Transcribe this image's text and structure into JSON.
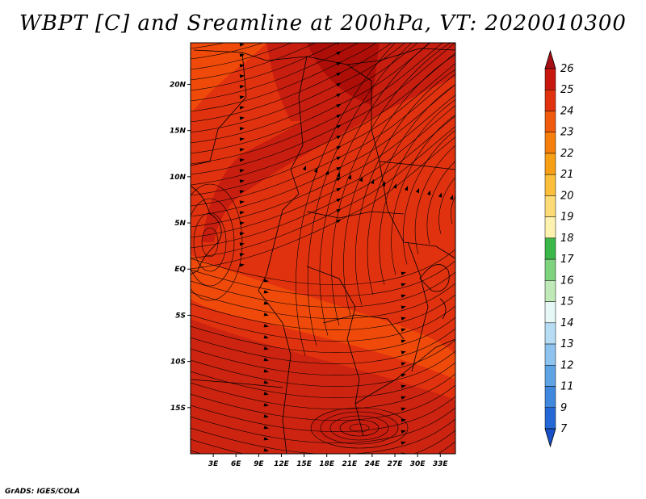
{
  "title": "WBPT [C] and Sreamline at 200hPa, VT: 2020010300",
  "credit": "GrADS: IGES/COLA",
  "map": {
    "lon_ticks": [
      "3E",
      "6E",
      "9E",
      "12E",
      "15E",
      "18E",
      "21E",
      "24E",
      "27E",
      "30E",
      "33E"
    ],
    "lat_ticks": [
      "20N",
      "15N",
      "10N",
      "5N",
      "EQ",
      "5S",
      "10S",
      "15S"
    ],
    "lon_values": [
      3,
      6,
      9,
      12,
      15,
      18,
      21,
      24,
      27,
      30,
      33
    ],
    "lat_values": [
      20,
      15,
      10,
      5,
      0,
      -5,
      -10,
      -15
    ],
    "lon_range": [
      0,
      35
    ],
    "lat_range": [
      -20,
      24.5
    ],
    "colors": {
      "band_25": "#c81e10",
      "band_24": "#e1320f",
      "band_23": "#f04a0a",
      "band_26": "#ad0f08"
    }
  },
  "colorbar": {
    "labels": [
      "26",
      "25",
      "24",
      "23",
      "22",
      "21",
      "20",
      "19",
      "18",
      "17",
      "16",
      "15",
      "14",
      "13",
      "12",
      "11",
      "9",
      "7"
    ],
    "colors": [
      "#a50f15",
      "#c8170f",
      "#e0320f",
      "#ef5a0d",
      "#f57e0d",
      "#f8a015",
      "#fbbf3c",
      "#fddc78",
      "#fef2b0",
      "#3cb84a",
      "#7fd27e",
      "#bfe9b7",
      "#e6f7f6",
      "#b7ddf5",
      "#8dc3ee",
      "#5ea4e4",
      "#3f88dd",
      "#2468d6",
      "#1850c8"
    ]
  }
}
